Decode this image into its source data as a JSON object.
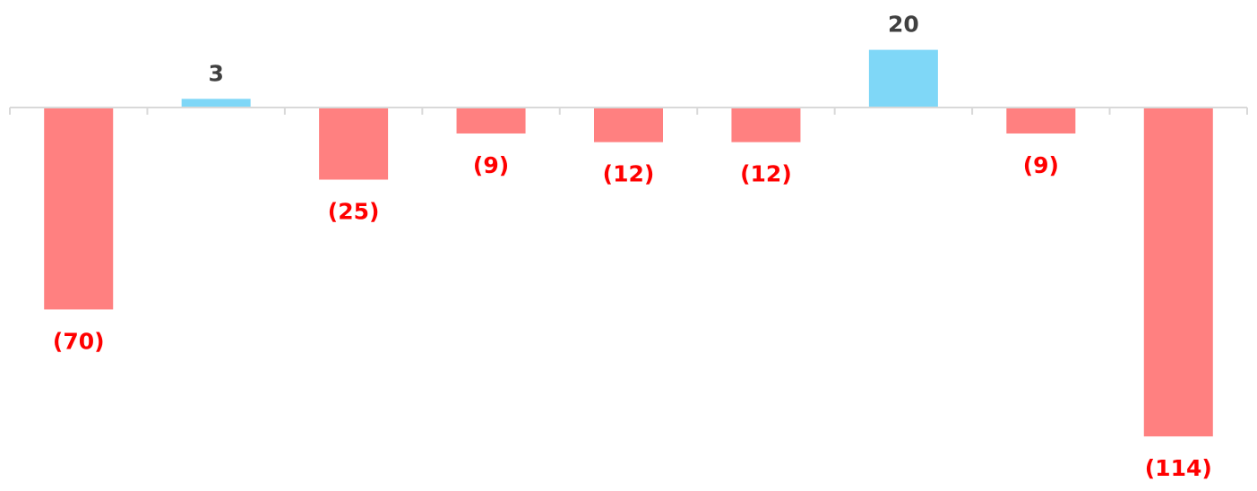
{
  "chart_data": {
    "type": "bar",
    "categories": [
      "",
      "",
      "",
      "",
      "",
      "",
      "",
      "",
      ""
    ],
    "values": [
      -70,
      3,
      -25,
      -9,
      -12,
      -12,
      20,
      -9,
      -114
    ],
    "data_labels": [
      "(70)",
      "3",
      "(25)",
      "(9)",
      "(12)",
      "(12)",
      "20",
      "(9)",
      "(114)"
    ],
    "title": "",
    "xlabel": "",
    "ylabel": "",
    "ylim": [
      -114,
      20
    ],
    "grid": false,
    "legend": "none",
    "colors": {
      "positive_bar": "#7fd7f7",
      "negative_bar": "#ff8080",
      "positive_label": "#404040",
      "negative_label": "#ff0000",
      "axis": "#d9d9d9"
    }
  }
}
